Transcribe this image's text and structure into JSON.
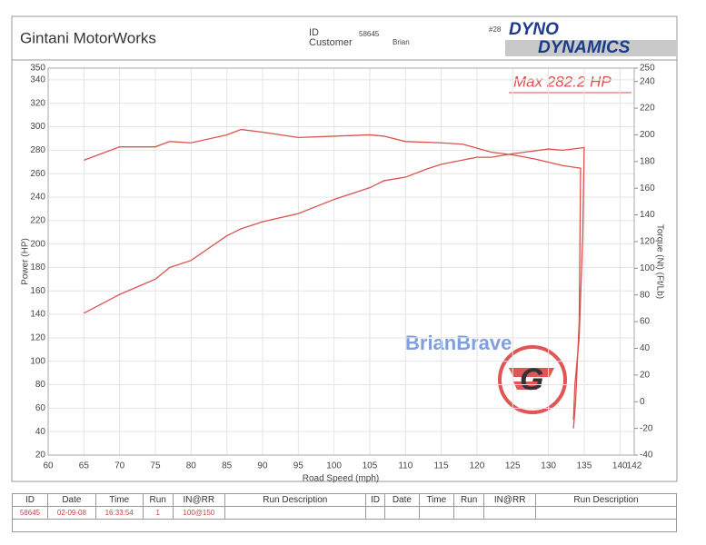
{
  "header": {
    "shop": "Gintani MotorWorks",
    "id_label": "ID",
    "id_value": "58645",
    "customer_label": "Customer",
    "customer_value": "Brian",
    "sheet_number": "#28",
    "logo_top": "DYNO",
    "logo_bottom": "DYNAMICS"
  },
  "chart_data": {
    "type": "line",
    "xlabel": "Road Speed (mph)",
    "ylabel": "Power (HP)",
    "y2label": "Torque (Nt) (Ft/Lb)",
    "annotation": "Max 282.2 HP",
    "watermark": "BrianBrave",
    "xlim": [
      60,
      142
    ],
    "xticks": [
      60,
      65,
      70,
      75,
      80,
      85,
      90,
      95,
      100,
      105,
      110,
      115,
      120,
      125,
      130,
      135,
      140,
      142
    ],
    "ylim": [
      20,
      350
    ],
    "yticks": [
      20,
      40,
      60,
      80,
      100,
      120,
      140,
      160,
      180,
      200,
      220,
      240,
      260,
      280,
      300,
      320,
      340,
      350
    ],
    "y2lim": [
      -40,
      250
    ],
    "y2ticks": [
      -40,
      -20,
      0,
      20,
      40,
      60,
      80,
      100,
      120,
      140,
      160,
      180,
      200,
      220,
      240,
      250
    ],
    "grid": true,
    "series": [
      {
        "color": "#d9534f",
        "x": [
          65,
          70,
          75,
          77,
          80,
          85,
          87,
          90,
          95,
          100,
          105,
          107,
          110,
          113,
          115,
          120,
          122,
          125,
          130,
          132,
          135,
          134.8,
          134.3,
          133.7,
          133.5
        ],
        "values": [
          141,
          157,
          170,
          180,
          186,
          207,
          213,
          219,
          226,
          238,
          248,
          254,
          257,
          264,
          268,
          274,
          274,
          277,
          281,
          280,
          282.2,
          208,
          120,
          80,
          50
        ]
      },
      {
        "color": "#d9534f",
        "axis": "y2",
        "x": [
          65,
          70,
          75,
          77,
          80,
          85,
          87,
          90,
          95,
          100,
          105,
          107,
          110,
          115,
          118,
          122,
          125,
          128,
          132,
          134.5,
          134.3,
          133.8,
          133.5
        ],
        "values": [
          181,
          191,
          191,
          195,
          194,
          200,
          204,
          202,
          198,
          199,
          200,
          199,
          195,
          194,
          193,
          187,
          185,
          182,
          177,
          175,
          60,
          0,
          -20
        ]
      }
    ]
  },
  "table": {
    "headers": [
      "ID",
      "Date",
      "Time",
      "Run",
      "IN@RR",
      "Run Description",
      "ID",
      "Date",
      "Time",
      "Run",
      "IN@RR",
      "Run Description"
    ],
    "rows": [
      [
        "58645",
        "02-09-08",
        "16:33:54",
        "1",
        "100@150"
      ]
    ]
  }
}
